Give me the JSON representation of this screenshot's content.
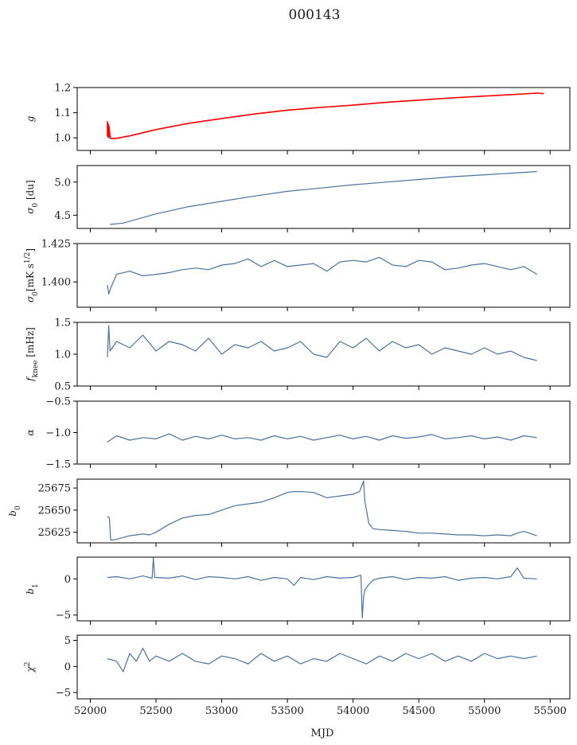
{
  "figure": {
    "title": "000143",
    "xlabel": "MJD"
  },
  "colors": {
    "series": "#4c72a0",
    "fit": "#ff0000"
  },
  "chart_data": [
    {
      "type": "line",
      "ylabel": "g",
      "ylim": [
        0.95,
        1.2
      ],
      "yticks": [
        1.0,
        1.1,
        1.2
      ],
      "ytick_labels": [
        "1.0",
        "1.1",
        "1.2"
      ],
      "xlim": [
        51900,
        55650
      ],
      "xticks": [
        52000,
        52500,
        53000,
        53500,
        54000,
        54500,
        55000,
        55500
      ],
      "xtick_labels": [
        "52000",
        "52500",
        "53000",
        "53500",
        "54000",
        "54500",
        "55000",
        "55500"
      ],
      "series": [
        {
          "role": "data",
          "color": "#4c72a0",
          "x": [
            52130,
            52140,
            52160,
            52200,
            52300,
            52500,
            52750,
            53000,
            53250,
            53500,
            53750,
            54000,
            54250,
            54500,
            54750,
            55000,
            55250,
            55400
          ],
          "y": [
            1.005,
            1.0,
            0.997,
            0.998,
            1.008,
            1.033,
            1.058,
            1.077,
            1.095,
            1.11,
            1.121,
            1.13,
            1.141,
            1.15,
            1.159,
            1.166,
            1.173,
            1.178
          ]
        },
        {
          "role": "fit",
          "color": "#ff0000",
          "x": [
            52130,
            52130,
            52133,
            52136,
            52139,
            52142,
            52150,
            52160,
            52200,
            52300,
            52500,
            52750,
            53000,
            53250,
            53500,
            53750,
            54000,
            54250,
            54500,
            54750,
            55000,
            55250,
            55400,
            55450
          ],
          "y": [
            1.005,
            1.065,
            1.01,
            1.055,
            1.005,
            1.048,
            1.002,
            0.997,
            0.998,
            1.008,
            1.033,
            1.058,
            1.077,
            1.095,
            1.11,
            1.121,
            1.13,
            1.141,
            1.15,
            1.159,
            1.166,
            1.173,
            1.178,
            1.176
          ]
        }
      ]
    },
    {
      "type": "line",
      "ylabel": "σ0 [du]",
      "ylim": [
        4.3,
        5.25
      ],
      "yticks": [
        4.5,
        5.0
      ],
      "ytick_labels": [
        "4.5",
        "5.0"
      ],
      "xlim": [
        51900,
        55650
      ],
      "xticks": [
        52000,
        52500,
        53000,
        53500,
        54000,
        54500,
        55000,
        55500
      ],
      "series": [
        {
          "color": "#4c72a0",
          "x": [
            52150,
            52250,
            52500,
            52750,
            53000,
            53250,
            53500,
            53750,
            54000,
            54250,
            54500,
            54750,
            55000,
            55250,
            55400
          ],
          "y": [
            4.36,
            4.38,
            4.52,
            4.63,
            4.71,
            4.79,
            4.86,
            4.91,
            4.96,
            5.0,
            5.04,
            5.08,
            5.11,
            5.14,
            5.16
          ]
        }
      ]
    },
    {
      "type": "line",
      "ylabel": "σ0[mK s1/2]",
      "ylim": [
        1.3835,
        1.425
      ],
      "yticks": [
        1.4,
        1.425
      ],
      "ytick_labels": [
        "1.400",
        "1.425"
      ],
      "xlim": [
        51900,
        55650
      ],
      "xticks": [
        52000,
        52500,
        53000,
        53500,
        54000,
        54500,
        55000,
        55500
      ],
      "series": [
        {
          "color": "#4c72a0",
          "x": [
            52130,
            52140,
            52155,
            52200,
            52300,
            52400,
            52500,
            52600,
            52700,
            52800,
            52900,
            53000,
            53100,
            53200,
            53300,
            53400,
            53500,
            53600,
            53700,
            53800,
            53900,
            54000,
            54100,
            54200,
            54300,
            54400,
            54500,
            54600,
            54700,
            54800,
            54900,
            55000,
            55100,
            55200,
            55300,
            55400
          ],
          "y": [
            1.398,
            1.392,
            1.396,
            1.405,
            1.407,
            1.404,
            1.405,
            1.406,
            1.408,
            1.409,
            1.408,
            1.411,
            1.412,
            1.415,
            1.41,
            1.414,
            1.41,
            1.411,
            1.412,
            1.407,
            1.413,
            1.414,
            1.413,
            1.416,
            1.411,
            1.41,
            1.414,
            1.413,
            1.408,
            1.409,
            1.411,
            1.412,
            1.41,
            1.408,
            1.41,
            1.405
          ]
        }
      ]
    },
    {
      "type": "line",
      "ylabel": "fknee [mHz]",
      "ylim": [
        0.5,
        1.5
      ],
      "yticks": [
        0.5,
        1.0,
        1.5
      ],
      "ytick_labels": [
        "0.5",
        "1.0",
        "1.5"
      ],
      "xlim": [
        51900,
        55650
      ],
      "xticks": [
        52000,
        52500,
        53000,
        53500,
        54000,
        54500,
        55000,
        55500
      ],
      "series": [
        {
          "color": "#4c72a0",
          "x": [
            52130,
            52140,
            52150,
            52200,
            52300,
            52400,
            52500,
            52600,
            52700,
            52800,
            52900,
            53000,
            53100,
            53200,
            53300,
            53400,
            53500,
            53600,
            53700,
            53800,
            53900,
            54000,
            54100,
            54200,
            54300,
            54400,
            54500,
            54600,
            54700,
            54800,
            54900,
            55000,
            55100,
            55200,
            55300,
            55400
          ],
          "y": [
            0.95,
            1.45,
            1.05,
            1.2,
            1.1,
            1.3,
            1.05,
            1.2,
            1.15,
            1.05,
            1.25,
            1.0,
            1.15,
            1.1,
            1.2,
            1.05,
            1.1,
            1.2,
            1.0,
            0.95,
            1.2,
            1.1,
            1.25,
            1.05,
            1.2,
            1.1,
            1.15,
            1.0,
            1.1,
            1.05,
            1.0,
            1.1,
            1.0,
            1.05,
            0.95,
            0.9
          ]
        }
      ]
    },
    {
      "type": "line",
      "ylabel": "α",
      "ylim": [
        -1.5,
        -0.5
      ],
      "yticks": [
        -1.5,
        -1.0,
        -0.5
      ],
      "ytick_labels": [
        "−1.5",
        "−1.0",
        "−0.5"
      ],
      "xlim": [
        51900,
        55650
      ],
      "xticks": [
        52000,
        52500,
        53000,
        53500,
        54000,
        54500,
        55000,
        55500
      ],
      "series": [
        {
          "color": "#4c72a0",
          "x": [
            52130,
            52200,
            52300,
            52400,
            52500,
            52600,
            52700,
            52800,
            52900,
            53000,
            53100,
            53200,
            53300,
            53400,
            53500,
            53600,
            53700,
            53800,
            53900,
            54000,
            54100,
            54200,
            54300,
            54400,
            54500,
            54600,
            54700,
            54800,
            54900,
            55000,
            55100,
            55200,
            55300,
            55400
          ],
          "y": [
            -1.15,
            -1.05,
            -1.12,
            -1.08,
            -1.1,
            -1.02,
            -1.12,
            -1.06,
            -1.1,
            -1.04,
            -1.1,
            -1.08,
            -1.12,
            -1.05,
            -1.1,
            -1.06,
            -1.12,
            -1.08,
            -1.04,
            -1.1,
            -1.06,
            -1.12,
            -1.05,
            -1.09,
            -1.07,
            -1.03,
            -1.1,
            -1.08,
            -1.05,
            -1.1,
            -1.07,
            -1.12,
            -1.05,
            -1.08
          ]
        }
      ]
    },
    {
      "type": "line",
      "ylabel": "b0",
      "ylim": [
        25613,
        25685
      ],
      "yticks": [
        25625,
        25650,
        25675
      ],
      "ytick_labels": [
        "25625",
        "25650",
        "25675"
      ],
      "xlim": [
        51900,
        55650
      ],
      "xticks": [
        52000,
        52500,
        53000,
        53500,
        54000,
        54500,
        55000,
        55500
      ],
      "series": [
        {
          "color": "#4c72a0",
          "x": [
            52130,
            52145,
            52155,
            52200,
            52300,
            52400,
            52450,
            52500,
            52600,
            52700,
            52800,
            52900,
            53000,
            53100,
            53200,
            53300,
            53400,
            53500,
            53550,
            53600,
            53700,
            53800,
            53900,
            54000,
            54050,
            54080,
            54090,
            54120,
            54150,
            54200,
            54300,
            54400,
            54500,
            54600,
            54700,
            54800,
            54900,
            55000,
            55100,
            55200,
            55250,
            55300,
            55400
          ],
          "y": [
            25643,
            25641,
            25616,
            25617,
            25621,
            25623,
            25622,
            25625,
            25634,
            25641,
            25644,
            25645,
            25650,
            25655,
            25657,
            25659,
            25664,
            25670,
            25671,
            25671,
            25670,
            25664,
            25666,
            25668,
            25671,
            25683,
            25660,
            25635,
            25629,
            25628,
            25627,
            25626,
            25624,
            25624,
            25623,
            25622,
            25622,
            25621,
            25622,
            25621,
            25624,
            25626,
            25621
          ]
        }
      ]
    },
    {
      "type": "line",
      "ylabel": "b1",
      "ylim": [
        -5.8,
        3.0
      ],
      "yticks": [
        -5,
        0
      ],
      "ytick_labels": [
        "−5",
        "0"
      ],
      "xlim": [
        51900,
        55650
      ],
      "xticks": [
        52000,
        52500,
        53000,
        53500,
        54000,
        54500,
        55000,
        55500
      ],
      "series": [
        {
          "color": "#4c72a0",
          "x": [
            52130,
            52200,
            52300,
            52400,
            52470,
            52480,
            52490,
            52600,
            52700,
            52800,
            52900,
            53000,
            53100,
            53200,
            53300,
            53400,
            53500,
            53550,
            53600,
            53700,
            53800,
            53900,
            54000,
            54060,
            54070,
            54080,
            54090,
            54120,
            54150,
            54200,
            54300,
            54400,
            54500,
            54600,
            54700,
            54800,
            54900,
            55000,
            55100,
            55200,
            55250,
            55300,
            55400
          ],
          "y": [
            0.2,
            0.3,
            0.0,
            0.4,
            0.1,
            2.9,
            0.2,
            0.1,
            0.4,
            -0.1,
            0.3,
            0.2,
            0.0,
            0.3,
            -0.2,
            0.2,
            0.0,
            -0.9,
            0.2,
            -0.1,
            0.3,
            0.1,
            0.2,
            0.5,
            -5.4,
            -2.5,
            -1.5,
            -0.8,
            -0.2,
            0.1,
            0.3,
            -0.1,
            0.2,
            0.1,
            0.3,
            -0.2,
            0.1,
            0.2,
            0.0,
            0.3,
            1.5,
            0.1,
            0.0
          ]
        }
      ]
    },
    {
      "type": "line",
      "ylabel": "χ2",
      "ylim": [
        -6.2,
        6.0
      ],
      "yticks": [
        -5,
        0,
        5
      ],
      "ytick_labels": [
        "−5",
        "0",
        "5"
      ],
      "xlim": [
        51900,
        55650
      ],
      "xticks": [
        52000,
        52500,
        53000,
        53500,
        54000,
        54500,
        55000,
        55500
      ],
      "xtick_labels": [
        "52000",
        "52500",
        "53000",
        "53500",
        "54000",
        "54500",
        "55000",
        "55500"
      ],
      "series": [
        {
          "color": "#4c72a0",
          "x": [
            52130,
            52200,
            52250,
            52300,
            52350,
            52400,
            52450,
            52500,
            52600,
            52700,
            52800,
            52900,
            53000,
            53100,
            53200,
            53300,
            53400,
            53500,
            53600,
            53700,
            53800,
            53900,
            54000,
            54100,
            54200,
            54300,
            54400,
            54500,
            54600,
            54700,
            54800,
            54900,
            55000,
            55100,
            55200,
            55300,
            55400
          ],
          "y": [
            1.5,
            1.0,
            -1.0,
            2.5,
            1.0,
            3.5,
            1.0,
            2.0,
            1.0,
            2.5,
            1.0,
            0.5,
            2.0,
            1.5,
            0.5,
            2.5,
            1.0,
            2.0,
            0.5,
            1.5,
            1.0,
            2.5,
            1.5,
            0.5,
            2.0,
            1.0,
            2.5,
            1.5,
            2.5,
            1.0,
            2.0,
            1.0,
            2.5,
            1.5,
            2.0,
            1.5,
            2.0
          ]
        }
      ]
    }
  ]
}
